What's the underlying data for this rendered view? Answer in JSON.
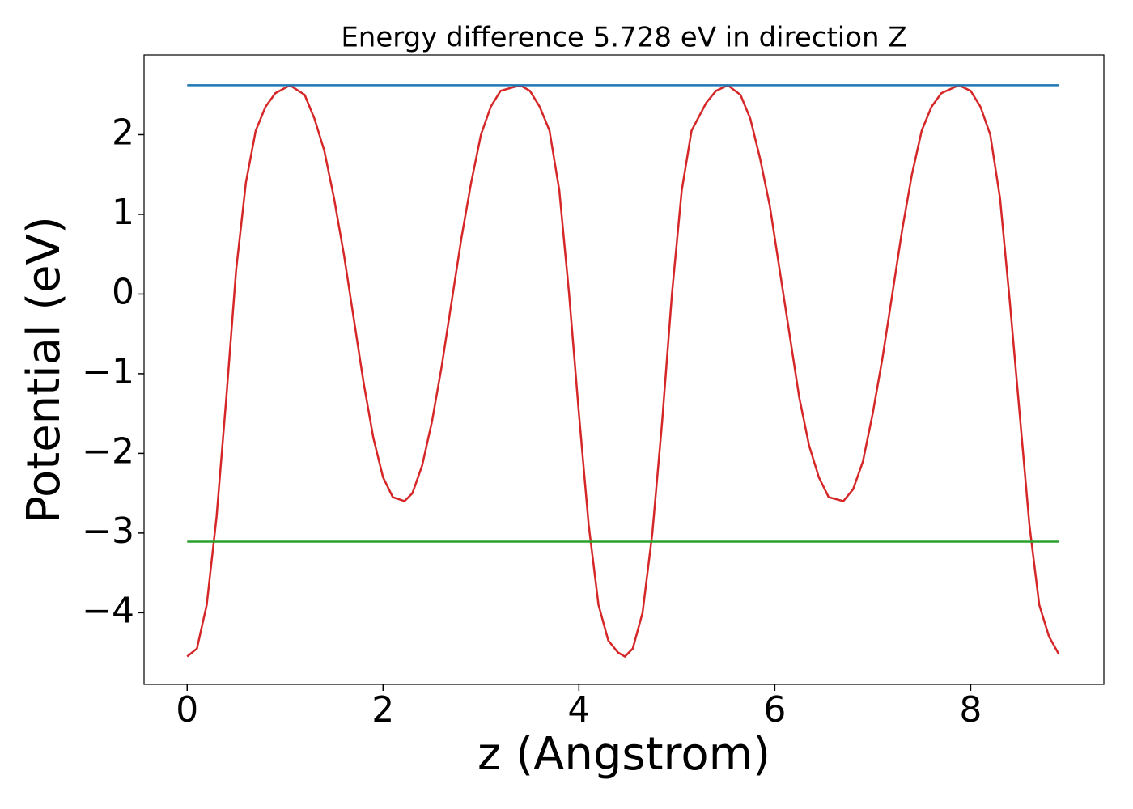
{
  "chart_data": {
    "type": "line",
    "title": "Energy difference 5.728 eV in direction Z",
    "xlabel": "z (Angstrom)",
    "ylabel": "Potential (eV)",
    "xlim": [
      -0.44,
      9.36
    ],
    "ylim": [
      -4.9,
      3.0
    ],
    "xticks": [
      0,
      2,
      4,
      6,
      8
    ],
    "yticks": [
      {
        "value": -4,
        "label": "−4"
      },
      {
        "value": -3,
        "label": "−3"
      },
      {
        "value": -2,
        "label": "−2"
      },
      {
        "value": -1,
        "label": "−1"
      },
      0,
      1,
      2
    ],
    "series": [
      {
        "color": "#d62728",
        "x": [
          0,
          0.1,
          0.2,
          0.3,
          0.4,
          0.5,
          0.6,
          0.7,
          0.8,
          0.9,
          1.05,
          1.2,
          1.3,
          1.4,
          1.5,
          1.6,
          1.7,
          1.8,
          1.9,
          2.0,
          2.1,
          2.22,
          2.3,
          2.4,
          2.5,
          2.6,
          2.7,
          2.8,
          2.9,
          3.0,
          3.1,
          3.2,
          3.4,
          3.5,
          3.6,
          3.7,
          3.8,
          3.9,
          4.0,
          4.1,
          4.2,
          4.3,
          4.4,
          4.47,
          4.55,
          4.65,
          4.75,
          4.85,
          4.95,
          5.05,
          5.15,
          5.3,
          5.4,
          5.52,
          5.65,
          5.75,
          5.85,
          5.95,
          6.05,
          6.15,
          6.25,
          6.35,
          6.45,
          6.55,
          6.7,
          6.8,
          6.9,
          7.0,
          7.1,
          7.2,
          7.3,
          7.4,
          7.5,
          7.6,
          7.7,
          7.88,
          8.0,
          8.1,
          8.2,
          8.3,
          8.4,
          8.5,
          8.6,
          8.7,
          8.8,
          8.9
        ],
        "values": [
          -4.55,
          -4.45,
          -3.9,
          -2.8,
          -1.3,
          0.3,
          1.4,
          2.05,
          2.35,
          2.52,
          2.62,
          2.5,
          2.2,
          1.8,
          1.2,
          0.5,
          -0.3,
          -1.1,
          -1.8,
          -2.3,
          -2.55,
          -2.6,
          -2.5,
          -2.15,
          -1.6,
          -0.9,
          -0.1,
          0.7,
          1.4,
          2.0,
          2.35,
          2.55,
          2.62,
          2.55,
          2.35,
          2.05,
          1.3,
          0,
          -1.5,
          -2.9,
          -3.9,
          -4.35,
          -4.5,
          -4.55,
          -4.45,
          -4.0,
          -3.0,
          -1.6,
          0,
          1.3,
          2.05,
          2.4,
          2.55,
          2.62,
          2.5,
          2.2,
          1.7,
          1.1,
          0.3,
          -0.5,
          -1.3,
          -1.9,
          -2.3,
          -2.55,
          -2.6,
          -2.45,
          -2.1,
          -1.5,
          -0.8,
          0.0,
          0.8,
          1.5,
          2.05,
          2.35,
          2.52,
          2.62,
          2.55,
          2.35,
          2.0,
          1.2,
          -0.1,
          -1.5,
          -2.9,
          -3.9,
          -4.3,
          -4.52
        ]
      },
      {
        "color": "#1f77b4",
        "x": [
          0,
          8.9
        ],
        "values": [
          2.62,
          2.62
        ]
      },
      {
        "color": "#2ca02c",
        "x": [
          0,
          8.9
        ],
        "values": [
          -3.108,
          -3.108
        ]
      }
    ]
  }
}
